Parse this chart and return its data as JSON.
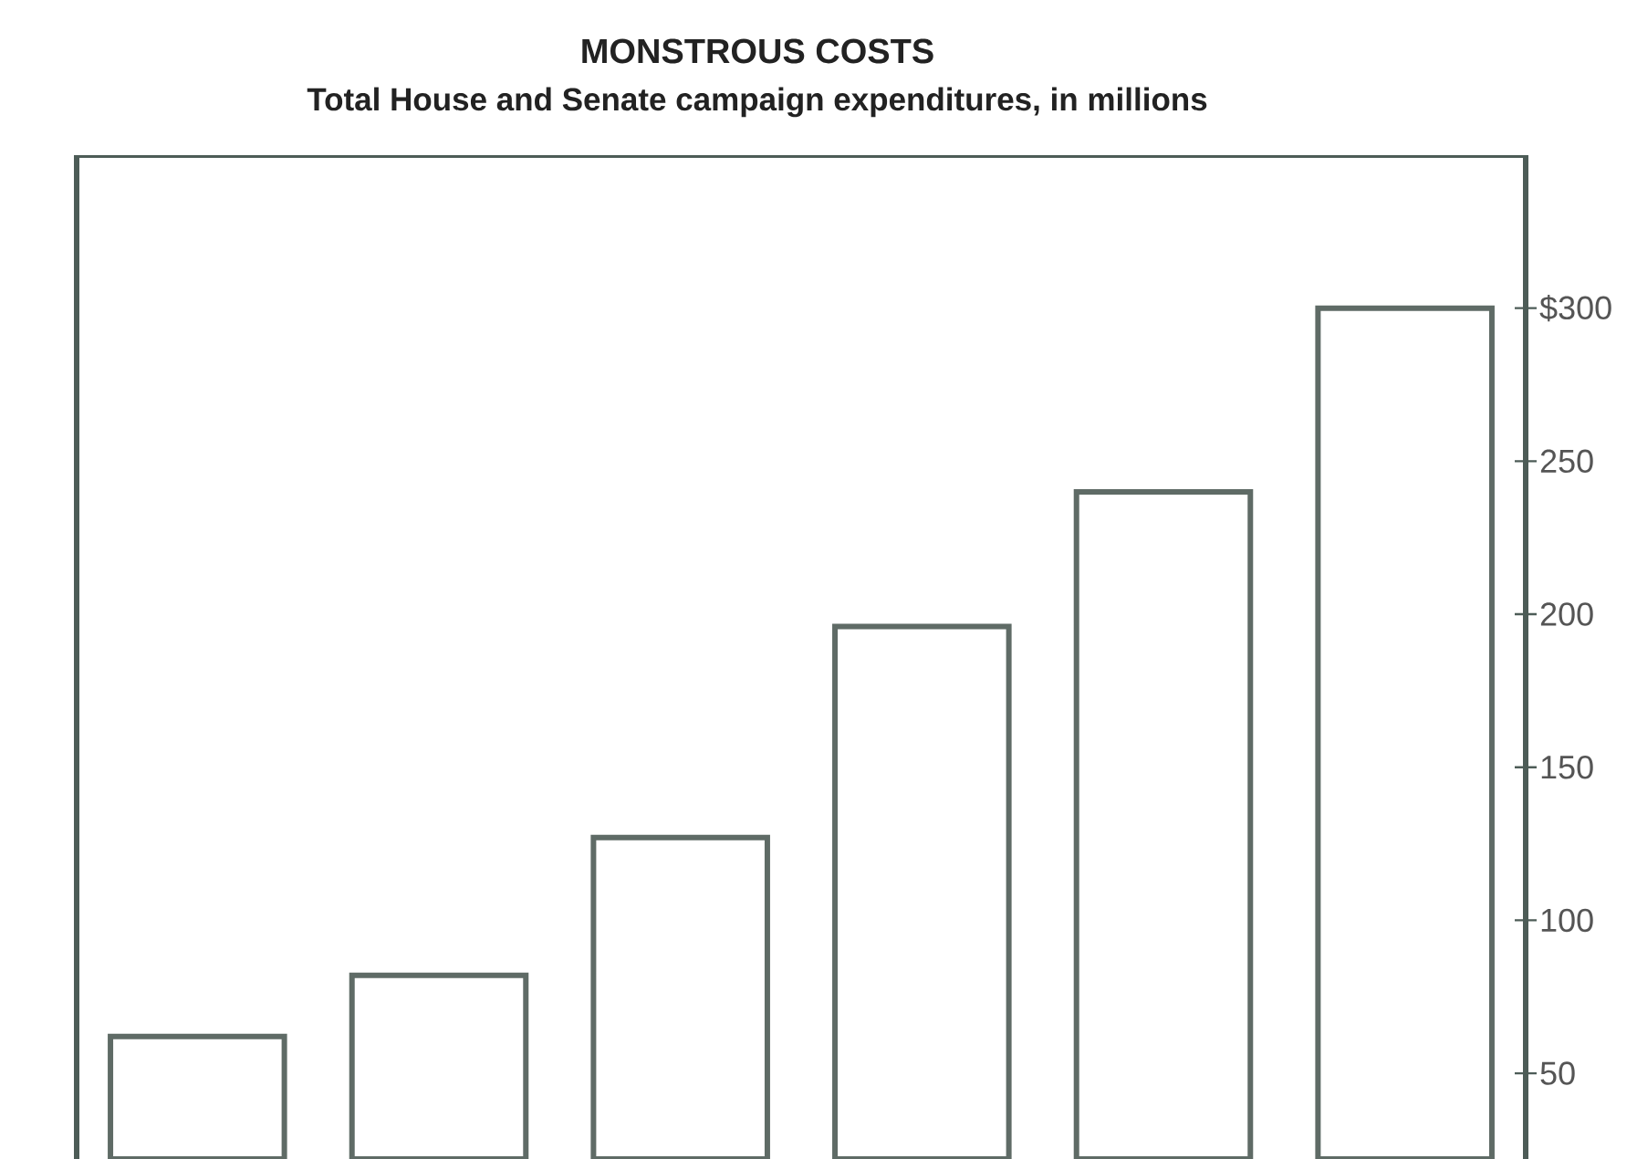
{
  "chart_data": {
    "type": "bar",
    "title": "MONSTROUS COSTS",
    "subtitle": "Total House and Senate campaign expenditures, in millions",
    "categories": [
      null,
      null,
      null,
      null,
      null,
      null
    ],
    "values": [
      62,
      82,
      127,
      196,
      240,
      300
    ],
    "color": "#ffffff",
    "ylim": [
      22,
      350
    ],
    "yticks": [
      {
        "value": 300,
        "label": "$300"
      },
      250,
      200,
      150,
      100,
      50
    ],
    "tick_labels": "y"
  }
}
